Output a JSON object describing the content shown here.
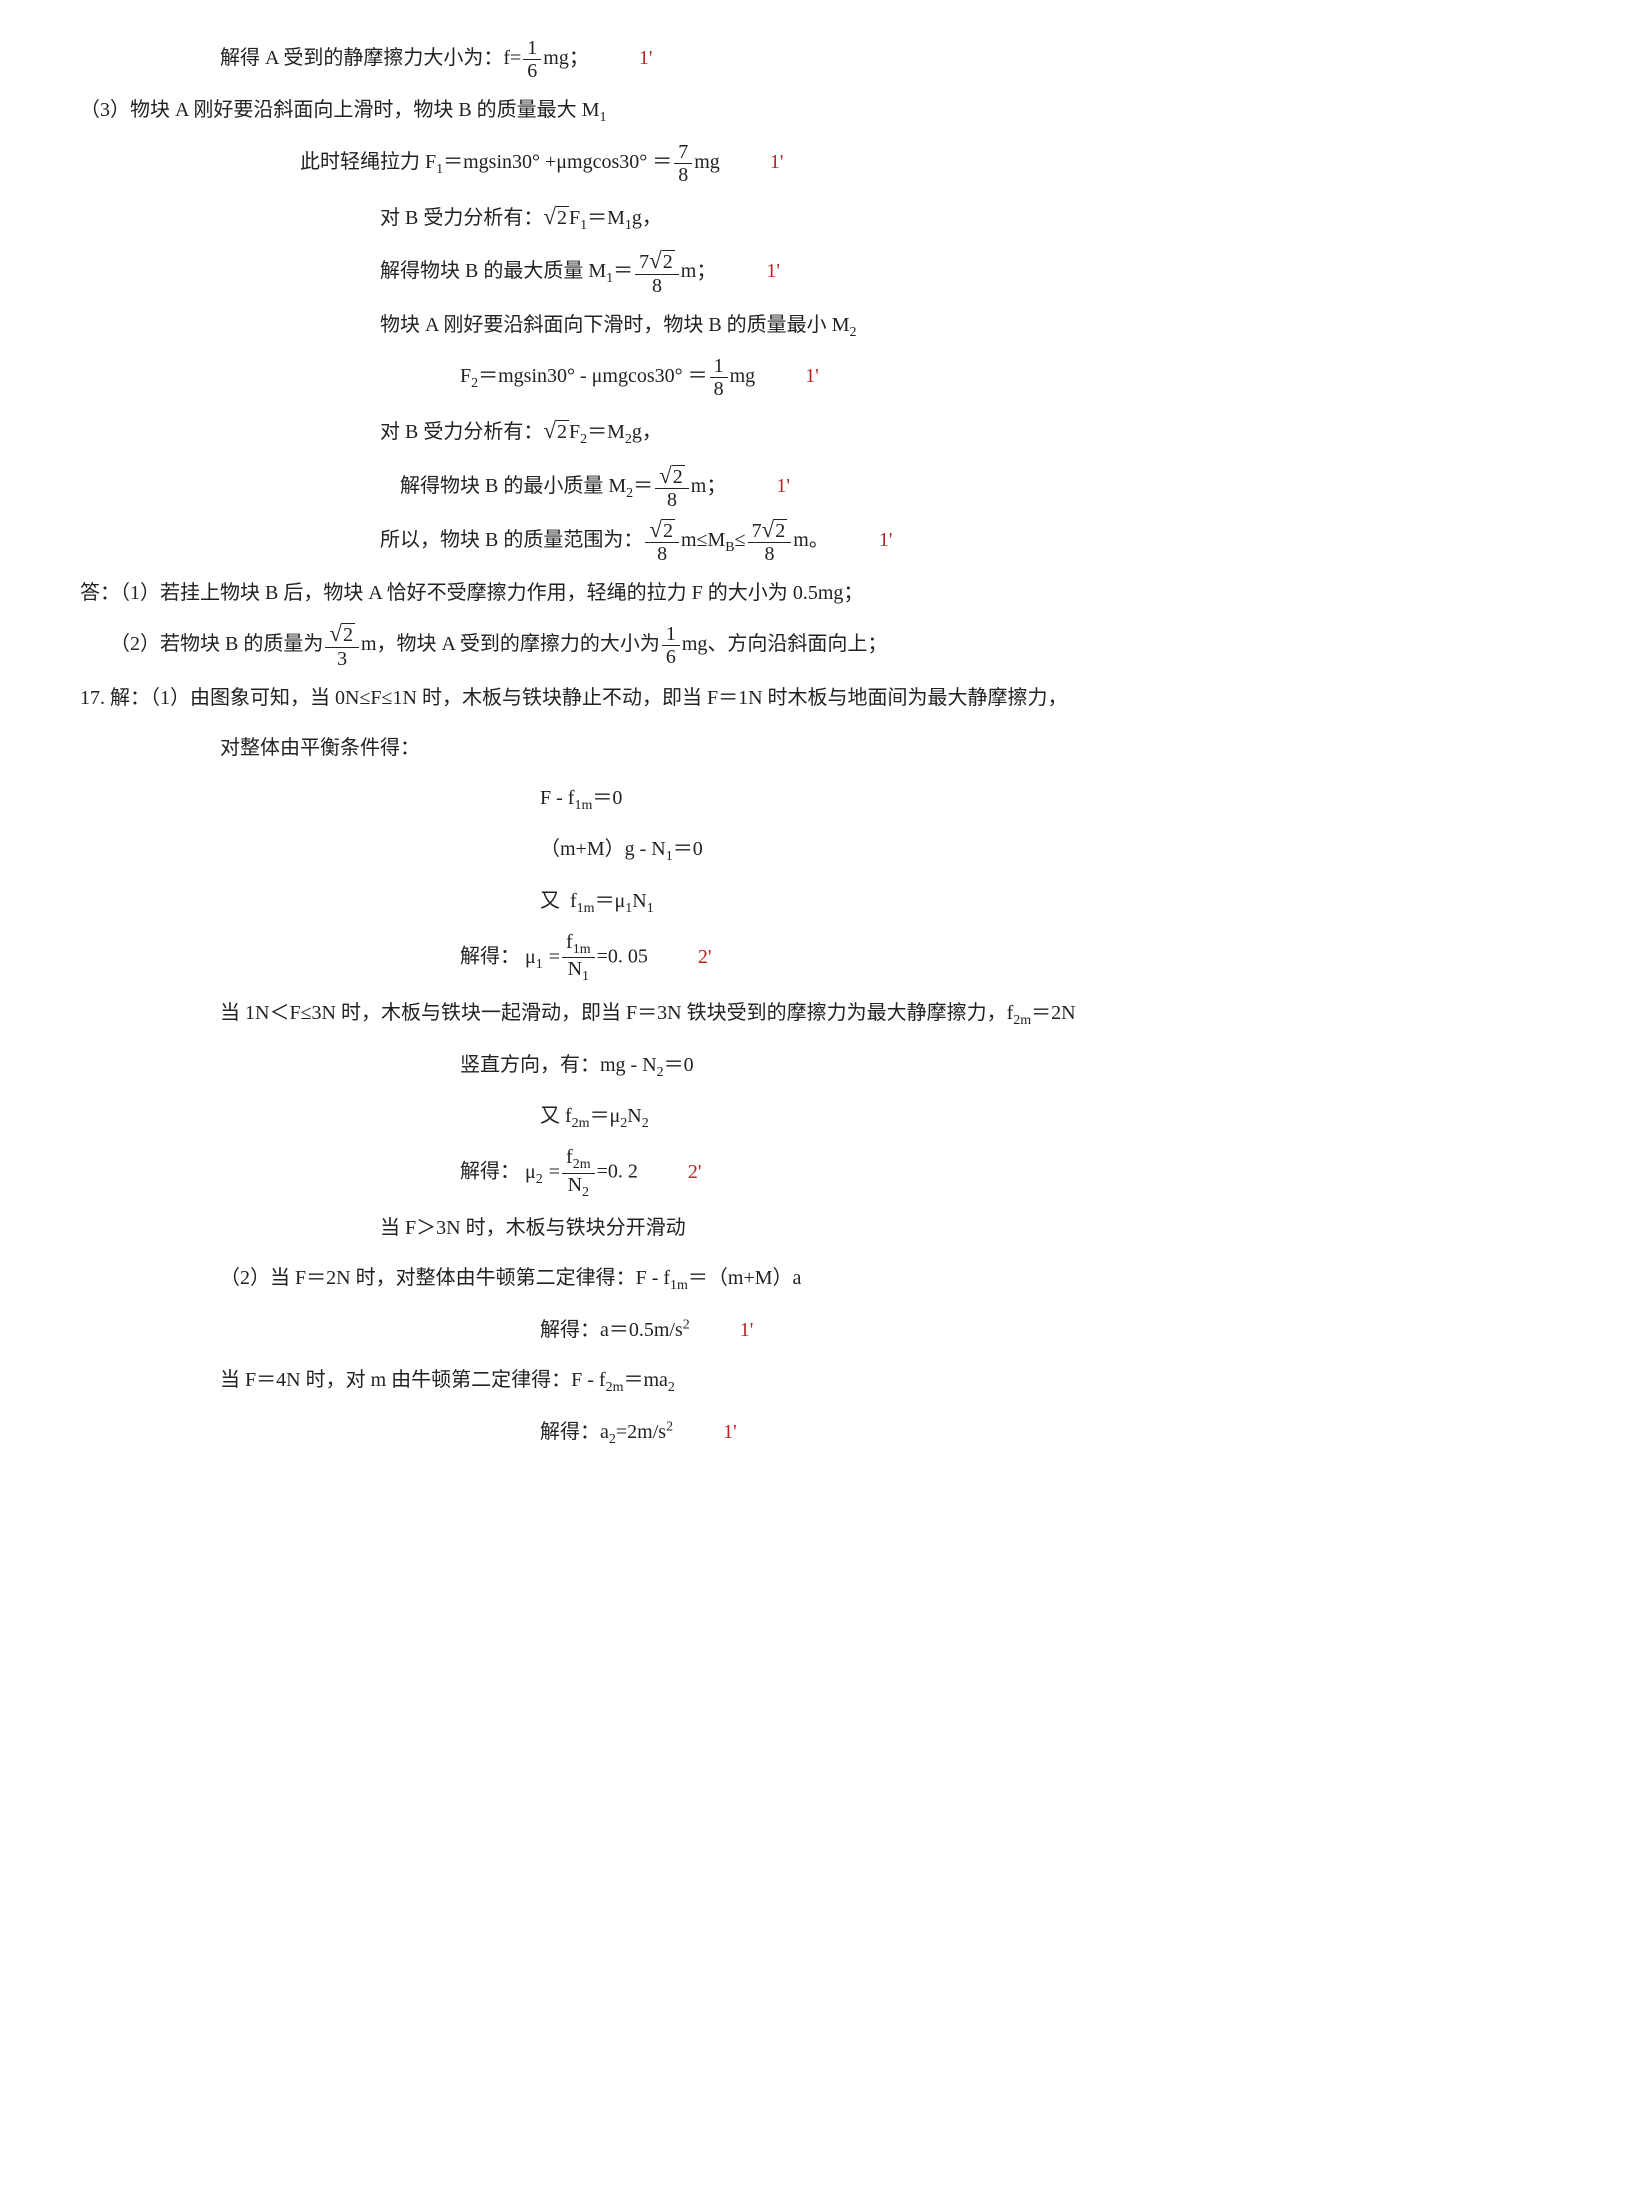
{
  "lines": [
    {
      "cls": "indent1",
      "html": "解得 A 受到的静摩擦力大小为：<span class='rm'>f=</span><span class='frac'><span class='num'>1</span><span class='den'>6</span></span><span class='rm'>mg</span>；",
      "pts": "1'"
    },
    {
      "cls": "",
      "html": "（3）物块 A 刚好要沿斜面向上滑时，物块 B 的质量最大 <span class='rm'>M<sub>1</sub></span>"
    },
    {
      "cls": "indent2",
      "html": "此时轻绳拉力 <span class='rm'>F<sub>1</sub>＝mgsin30°&nbsp;+μmgcos30°&nbsp;＝</span><span class='frac'><span class='num'>7</span><span class='den'>8</span></span><span class='rm'>mg</span>",
      "pts": "1'"
    },
    {
      "cls": "indent3",
      "html": "对 B 受力分析有：<span class='sqrt'><span class='rad'>2</span></span><span class='rm'>F<sub>1</sub>＝M<sub>1</sub>g</span>，"
    },
    {
      "cls": "indent3",
      "html": "解得物块 B 的最大质量 <span class='rm'>M<sub>1</sub>＝</span><span class='frac'><span class='num'>7<span class='sqrt'><span class='rad'>2</span></span></span><span class='den'>8</span></span><span class='rm'>m</span>；",
      "pts": "1'"
    },
    {
      "cls": "indent3",
      "html": "物块 A 刚好要沿斜面向下滑时，物块 B 的质量最小 <span class='rm'>M<sub>2</sub></span>"
    },
    {
      "cls": "indent4",
      "html": "<span class='rm'>F<sub>2</sub>＝mgsin30°&nbsp;- μmgcos30°&nbsp;＝</span><span class='frac'><span class='num'>1</span><span class='den'>8</span></span><span class='rm'>mg</span>",
      "pts": "1'"
    },
    {
      "cls": "indent3",
      "html": "对 B 受力分析有：<span class='sqrt'><span class='rad'>2</span></span><span class='rm'>F<sub>2</sub>＝M<sub>2</sub>g</span>，"
    },
    {
      "cls": "indent3",
      "html": "&nbsp;&nbsp;&nbsp;&nbsp;解得物块 B 的最小质量 <span class='rm'>M<sub>2</sub>＝</span><span class='frac'><span class='num'><span class='sqrt'><span class='rad'>2</span></span></span><span class='den'>8</span></span><span class='rm'>m</span>；",
      "pts": "1'"
    },
    {
      "cls": "indent3",
      "html": "所以，物块 B 的质量范围为：<span class='frac'><span class='num'><span class='sqrt'><span class='rad'>2</span></span></span><span class='den'>8</span></span><span class='rm'>m≤M<sub>B</sub>≤</span><span class='frac'><span class='num'>7<span class='sqrt'><span class='rad'>2</span></span></span><span class='den'>8</span></span><span class='rm'>m</span>。",
      "pts": "1'"
    },
    {
      "cls": "",
      "html": "答：（1）若挂上物块 B 后，物块 A 恰好不受摩擦力作用，轻绳的拉力 F 的大小为 <span class='rm'>0.5mg</span>；"
    },
    {
      "cls": "",
      "html": "&nbsp;&nbsp;&nbsp;&nbsp;&nbsp;&nbsp;（2）若物块 B 的质量为<span class='frac'><span class='num'><span class='sqrt'><span class='rad'>2</span></span></span><span class='den'>3</span></span><span class='rm'>m</span>，物块 A 受到的摩擦力的大小为<span class='frac'><span class='num'>1</span><span class='den'>6</span></span><span class='rm'>mg</span>、方向沿斜面向上；"
    },
    {
      "cls": "",
      "html": "17.&nbsp;解：（1）由图象可知，当 <span class='rm'>0N≤F≤1N</span> 时，木板与铁块静止不动，即当 <span class='rm'>F＝1N</span> 时木板与地面间为最大静摩擦力，"
    },
    {
      "cls": "indent1",
      "html": "对整体由平衡条件得："
    },
    {
      "cls": "indent5",
      "html": "<span class='rm'>F - f<sub>1m</sub>＝0</span>"
    },
    {
      "cls": "indent5",
      "html": "<span class='rm'>（m+M）g - N<sub>1</sub>＝0</span>"
    },
    {
      "cls": "indent5",
      "html": "又&nbsp;&nbsp;<span class='rm'>f<sub>1m</sub>＝μ<sub>1</sub>N<sub>1</sub></span>"
    },
    {
      "cls": "indent4",
      "html": "解得：&nbsp;<span class='rm'>μ<sub style='margin-right:6px'>1</sub>=</span><span class='frac'><span class='num'>f<sub>1m</sub></span><span class='den'>N<sub>1</sub></span></span><span class='rm'>=0. 05</span>",
      "pts": "2'"
    },
    {
      "cls": "indent1",
      "html": "当 <span class='rm'>1N＜F≤3N</span> 时，木板与铁块一起滑动，即当 <span class='rm'>F＝3N</span> 铁块受到的摩擦力为最大静摩擦力，<span class='rm'>f<sub>2m</sub>＝2N</span>"
    },
    {
      "cls": "indent4",
      "html": "竖直方向，有：<span class='rm'>mg - N<sub>2</sub>＝0</span>"
    },
    {
      "cls": "indent5",
      "html": "又&nbsp;<span class='rm'>f<sub>2m</sub>＝μ<sub>2</sub>N<sub>2</sub></span>"
    },
    {
      "cls": "indent4",
      "html": "解得：&nbsp;<span class='rm'>μ<sub style='margin-right:6px'>2</sub>=</span><span class='frac'><span class='num'>f<sub>2m</sub></span><span class='den'>N<sub>2</sub></span></span><span class='rm'>=0. 2</span>",
      "pts": "2'"
    },
    {
      "cls": "indent3",
      "html": "当 <span class='rm'>F＞3N</span> 时，木板与铁块分开滑动"
    },
    {
      "cls": "indent1",
      "html": "（2）当 <span class='rm'>F＝2N</span> 时，对整体由牛顿第二定律得：<span class='rm'>F - f<sub>1m</sub>＝（m+M）a</span>"
    },
    {
      "cls": "indent5",
      "html": "解得：<span class='rm'>a＝0.5m/s<sup>2</sup></span>",
      "pts": "1'"
    },
    {
      "cls": "indent1",
      "html": "当 <span class='rm'>F＝4N</span> 时，对 m 由牛顿第二定律得：<span class='rm'>F - f<sub>2m</sub>＝ma<sub>2</sub></span>"
    },
    {
      "cls": "indent5",
      "html": "解得：<span class='rm'>a<sub>2</sub>=2m/s<sup>2</sup></span>",
      "pts": "1'"
    }
  ]
}
